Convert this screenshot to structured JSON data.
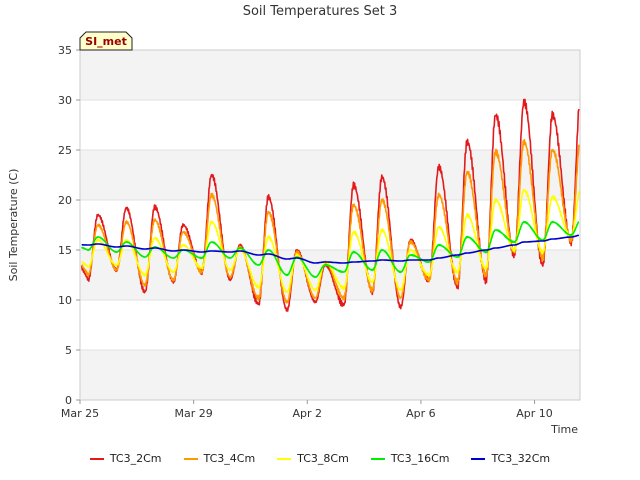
{
  "chart_data": {
    "type": "line",
    "title": "Soil Temperatures Set 3",
    "xlabel": "Time",
    "ylabel": "Soil Temperature (C)",
    "badge": "SI_met",
    "xlim": [
      "2024-03-25",
      "2024-04-11"
    ],
    "ylim": [
      0,
      35
    ],
    "yticks": [
      0,
      5,
      10,
      15,
      20,
      25,
      30,
      35
    ],
    "xticks": [
      {
        "date": "2024-03-25",
        "label": "Mar 25"
      },
      {
        "date": "2024-03-29",
        "label": "Mar 29"
      },
      {
        "date": "2024-04-02",
        "label": "Apr 2"
      },
      {
        "date": "2024-04-06",
        "label": "Apr 6"
      },
      {
        "date": "2024-04-10",
        "label": "Apr 10"
      }
    ],
    "grid": true,
    "legend": "bottom",
    "x": [
      "2024-03-25",
      "2024-03-26",
      "2024-03-27",
      "2024-03-28",
      "2024-03-29",
      "2024-03-30",
      "2024-03-31",
      "2024-04-01",
      "2024-04-02",
      "2024-04-03",
      "2024-04-04",
      "2024-04-05",
      "2024-04-06",
      "2024-04-07",
      "2024-04-08",
      "2024-04-09",
      "2024-04-10",
      "2024-04-11"
    ],
    "series": [
      {
        "name": "TC3_2Cm",
        "color": "#e31a1c",
        "min": [
          12.0,
          13.0,
          10.8,
          11.8,
          12.8,
          12.0,
          9.6,
          9.0,
          9.8,
          9.5,
          10.8,
          9.3,
          12.0,
          11.3,
          12.0,
          14.5,
          13.5,
          15.8
        ],
        "max": [
          18.5,
          19.2,
          19.3,
          17.5,
          22.5,
          15.5,
          20.3,
          15.0,
          13.5,
          21.5,
          22.3,
          16.0,
          23.3,
          25.8,
          28.5,
          29.8,
          28.5,
          31.0
        ]
      },
      {
        "name": "TC3_4Cm",
        "color": "#ff9900",
        "min": [
          12.5,
          13.0,
          11.5,
          12.0,
          12.8,
          12.3,
          10.2,
          9.8,
          10.2,
          10.2,
          11.0,
          10.2,
          12.0,
          11.8,
          12.5,
          14.8,
          14.2,
          16.0
        ],
        "max": [
          17.5,
          17.8,
          18.0,
          16.8,
          20.5,
          15.3,
          18.8,
          14.8,
          13.8,
          19.5,
          20.0,
          15.8,
          20.5,
          22.8,
          24.8,
          25.8,
          25.0,
          26.5
        ]
      },
      {
        "name": "TC3_8Cm",
        "color": "#ffff00",
        "min": [
          13.3,
          13.5,
          12.5,
          12.8,
          13.2,
          13.0,
          11.3,
          10.8,
          11.0,
          11.2,
          11.8,
          11.0,
          12.5,
          12.8,
          13.2,
          15.0,
          14.8,
          16.3
        ],
        "max": [
          16.0,
          16.0,
          16.2,
          15.5,
          17.8,
          15.0,
          16.3,
          14.5,
          13.8,
          16.8,
          17.0,
          15.0,
          17.3,
          18.5,
          20.0,
          21.0,
          20.3,
          21.3
        ]
      },
      {
        "name": "TC3_16Cm",
        "color": "#00ee00",
        "min": [
          15.0,
          14.8,
          14.3,
          14.2,
          14.2,
          14.2,
          13.5,
          12.5,
          12.3,
          12.8,
          13.0,
          12.8,
          13.8,
          14.3,
          14.8,
          15.8,
          16.0,
          16.5
        ],
        "max": [
          16.3,
          15.8,
          15.3,
          15.0,
          15.8,
          15.2,
          15.0,
          14.3,
          13.5,
          14.8,
          15.0,
          14.5,
          15.5,
          16.3,
          17.0,
          17.8,
          17.8,
          18.0
        ]
      },
      {
        "name": "TC3_32Cm",
        "color": "#0000cc",
        "min": [
          15.5,
          15.3,
          15.1,
          14.9,
          14.8,
          14.8,
          14.5,
          14.1,
          13.7,
          13.7,
          13.9,
          13.9,
          14.0,
          14.5,
          15.0,
          15.5,
          15.9,
          16.3
        ],
        "max": [
          15.6,
          15.4,
          15.2,
          15.0,
          14.9,
          14.9,
          14.6,
          14.2,
          13.8,
          13.8,
          14.0,
          14.0,
          14.2,
          14.7,
          15.2,
          15.8,
          16.1,
          16.5
        ]
      }
    ]
  }
}
